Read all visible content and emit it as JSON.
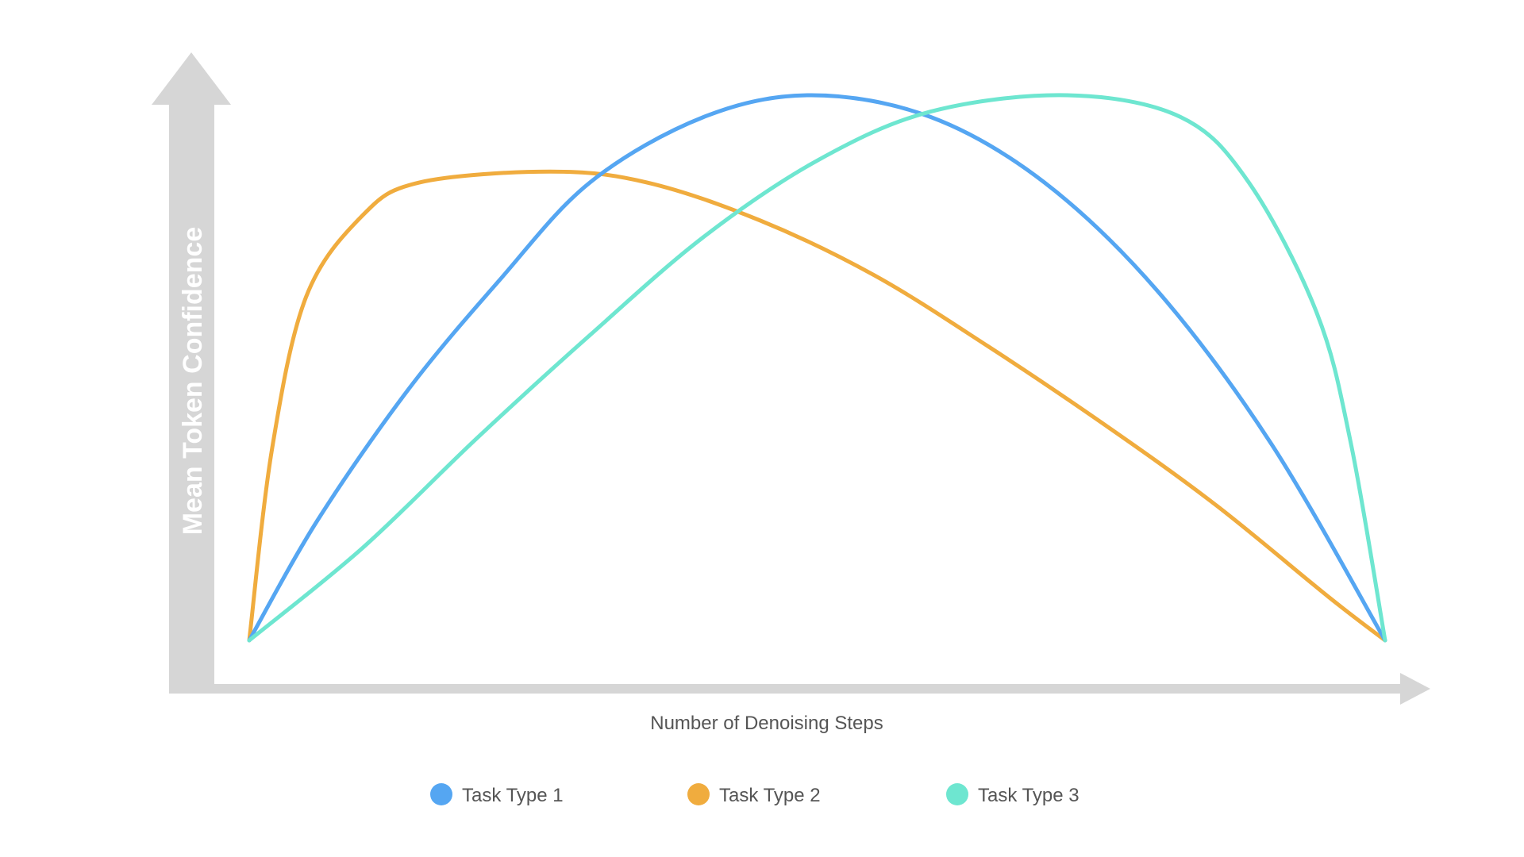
{
  "chart_data": {
    "type": "line",
    "title": "",
    "xlabel": "Number of Denoising Steps",
    "ylabel": "Mean Token Confidence",
    "xlim": [
      0,
      1
    ],
    "ylim": [
      0,
      1
    ],
    "grid": false,
    "legend_position": "bottom",
    "axis_color": "#d6d6d6",
    "series": [
      {
        "name": "Task Type 1",
        "color": "#55a6f2",
        "points": [
          [
            0,
            0
          ],
          [
            0.06,
            0.22
          ],
          [
            0.14,
            0.46
          ],
          [
            0.22,
            0.66
          ],
          [
            0.3,
            0.84
          ],
          [
            0.4,
            0.96
          ],
          [
            0.495,
            1.0
          ],
          [
            0.6,
            0.96
          ],
          [
            0.7,
            0.84
          ],
          [
            0.8,
            0.64
          ],
          [
            0.9,
            0.36
          ],
          [
            1.0,
            0.0
          ]
        ]
      },
      {
        "name": "Task Type 2",
        "color": "#f0ac3e",
        "points": [
          [
            0,
            0
          ],
          [
            0.02,
            0.35
          ],
          [
            0.05,
            0.63
          ],
          [
            0.1,
            0.78
          ],
          [
            0.15,
            0.84
          ],
          [
            0.265,
            0.86
          ],
          [
            0.35,
            0.84
          ],
          [
            0.45,
            0.77
          ],
          [
            0.55,
            0.67
          ],
          [
            0.65,
            0.54
          ],
          [
            0.75,
            0.4
          ],
          [
            0.85,
            0.25
          ],
          [
            0.95,
            0.08
          ],
          [
            1.0,
            0.0
          ]
        ]
      },
      {
        "name": "Task Type 3",
        "color": "#6ee6d0",
        "points": [
          [
            0,
            0
          ],
          [
            0.1,
            0.17
          ],
          [
            0.2,
            0.37
          ],
          [
            0.3,
            0.56
          ],
          [
            0.4,
            0.74
          ],
          [
            0.5,
            0.88
          ],
          [
            0.6,
            0.97
          ],
          [
            0.72,
            1.0
          ],
          [
            0.82,
            0.96
          ],
          [
            0.88,
            0.84
          ],
          [
            0.94,
            0.6
          ],
          [
            0.97,
            0.36
          ],
          [
            1.0,
            0.0
          ]
        ]
      }
    ]
  },
  "legend": {
    "items": [
      {
        "label": "Task Type 1",
        "color": "#55a6f2"
      },
      {
        "label": "Task Type 2",
        "color": "#f0ac3e"
      },
      {
        "label": "Task Type 3",
        "color": "#6ee6d0"
      }
    ]
  }
}
